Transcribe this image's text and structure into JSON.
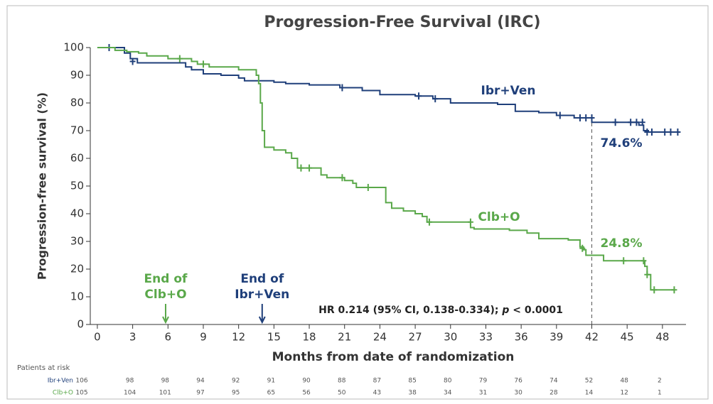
{
  "chart_data": {
    "type": "step",
    "title": "Progression-Free Survival (IRC)",
    "x_label": "Months from date of randomization",
    "y_label": "Progression-free survival (%)",
    "xlim": [
      -0.6,
      50
    ],
    "ylim": [
      0,
      100
    ],
    "xticks": [
      0,
      3,
      6,
      9,
      12,
      15,
      18,
      21,
      24,
      27,
      30,
      33,
      36,
      39,
      42,
      45,
      48
    ],
    "yticks": [
      0,
      10,
      20,
      30,
      40,
      50,
      60,
      70,
      80,
      90,
      100
    ],
    "series": [
      {
        "name": "Ibr+Ven",
        "color": "#1f3f7a",
        "x": [
          0,
          2.3,
          2.8,
          3.4,
          7.5,
          8,
          9,
          10.5,
          12,
          12.5,
          15,
          16,
          18,
          20.6,
          22.5,
          24,
          27,
          28.5,
          30,
          34,
          35.5,
          37.5,
          39,
          40.5,
          42,
          46,
          46.4,
          46.8,
          49.3
        ],
        "values": [
          100,
          98,
          96,
          94.5,
          93,
          92,
          90.5,
          90,
          89,
          88,
          87.5,
          87,
          86.5,
          85.5,
          84.5,
          83,
          82.5,
          81.5,
          80,
          79.5,
          77,
          76.5,
          75.5,
          74.6,
          73,
          72,
          70,
          69.5,
          69.5
        ],
        "censor_x": [
          1,
          3,
          20.8,
          27.3,
          28.7,
          39.3,
          41,
          41.5,
          42,
          44,
          45.3,
          45.8,
          46.3,
          46.7,
          47.1,
          48.2,
          48.7,
          49.3
        ],
        "censor_values": [
          100,
          95,
          85.5,
          82.5,
          81.5,
          75.5,
          74.6,
          74.6,
          74.6,
          73,
          73,
          73,
          73,
          69.5,
          69.5,
          69.5,
          69.5,
          69.5
        ]
      },
      {
        "name": "Clb+O",
        "color": "#5aa84a",
        "x": [
          0,
          1.5,
          2.5,
          3.5,
          4.2,
          6,
          8,
          8.5,
          9.5,
          12,
          13.5,
          13.7,
          13.85,
          14,
          14.2,
          15,
          16,
          16.5,
          17,
          19,
          19.5,
          21,
          21.7,
          22,
          24.5,
          25,
          26,
          27,
          27.6,
          28,
          31.7,
          32,
          35,
          36.5,
          37.5,
          40,
          41,
          41.3,
          41.5,
          43,
          46.5,
          46.7,
          47,
          49
        ],
        "values": [
          100,
          99,
          98.5,
          98,
          97,
          96,
          95,
          94,
          93,
          92,
          90,
          87,
          80,
          70,
          64,
          63,
          62,
          60,
          56.5,
          54,
          53,
          52,
          51,
          49.5,
          44,
          42,
          41,
          40,
          39,
          37,
          35,
          34.5,
          34,
          33,
          31,
          30.5,
          28,
          27,
          25,
          23,
          21,
          18,
          12.5,
          12.5
        ],
        "censor_x": [
          7,
          9,
          17.3,
          18,
          20.8,
          23,
          28.2,
          31.7,
          41.2,
          44.7,
          46.4,
          46.7,
          47.3,
          49
        ],
        "censor_values": [
          96,
          94,
          56.5,
          56.5,
          53,
          49.5,
          37,
          37,
          27.5,
          23,
          23,
          18,
          12.5,
          12.5
        ]
      }
    ],
    "landmark": {
      "x": 42,
      "values": [
        74.6,
        24.8
      ],
      "value_labels": [
        "74.6%",
        "24.8%"
      ]
    },
    "hr_text": [
      "HR 0.214 (95% CI, 0.138-0.334); ",
      "p",
      " < 0.0001"
    ],
    "end_markers": [
      {
        "x": 5.8,
        "label": [
          "End of",
          "Clb+O"
        ],
        "color": "#5aa84a"
      },
      {
        "x": 14,
        "label": [
          "End of",
          "Ibr+Ven"
        ],
        "color": "#1f3f7a"
      }
    ],
    "risk_table": {
      "title": "Patients at risk",
      "rows": [
        [
          106,
          98,
          98,
          94,
          92,
          91,
          90,
          88,
          87,
          85,
          80,
          79,
          76,
          74,
          52,
          48,
          2
        ],
        [
          105,
          104,
          101,
          97,
          95,
          65,
          56,
          50,
          43,
          38,
          34,
          31,
          30,
          28,
          14,
          12,
          1
        ]
      ]
    }
  }
}
